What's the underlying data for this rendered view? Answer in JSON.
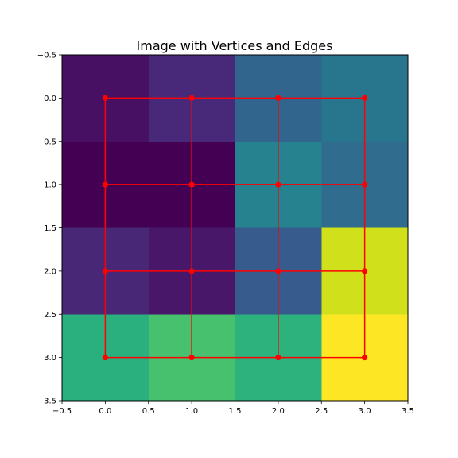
{
  "chart_data": {
    "type": "heatmap",
    "title": "Image with Vertices and Edges",
    "xlabel": "",
    "ylabel": "",
    "xlim": [
      -0.5,
      3.5
    ],
    "ylim": [
      3.5,
      -0.5
    ],
    "y_inverted": true,
    "grid": false,
    "colormap": "viridis",
    "cell_colors": [
      [
        "#471063",
        "#482979",
        "#31658e",
        "#28768e"
      ],
      [
        "#440154",
        "#440154",
        "#25828e",
        "#2f6c8e"
      ],
      [
        "#482777",
        "#481769",
        "#375b8d",
        "#d0e11c"
      ],
      [
        "#2ab07f",
        "#47c16e",
        "#2db27d",
        "#fde725"
      ]
    ],
    "x_ticks": [
      -0.5,
      0.0,
      0.5,
      1.0,
      1.5,
      2.0,
      2.5,
      3.0,
      3.5
    ],
    "x_tick_labels": [
      "−0.5",
      "0.0",
      "0.5",
      "1.0",
      "1.5",
      "2.0",
      "2.5",
      "3.0",
      "3.5"
    ],
    "y_ticks": [
      -0.5,
      0.0,
      0.5,
      1.0,
      1.5,
      2.0,
      2.5,
      3.0,
      3.5
    ],
    "y_tick_labels": [
      "−0.5",
      "0.0",
      "0.5",
      "1.0",
      "1.5",
      "2.0",
      "2.5",
      "3.0",
      "3.5"
    ],
    "vertex_color": "#ff0000",
    "edge_color": "#ff0000",
    "vertices": [
      [
        0,
        0
      ],
      [
        1,
        0
      ],
      [
        2,
        0
      ],
      [
        3,
        0
      ],
      [
        0,
        1
      ],
      [
        1,
        1
      ],
      [
        2,
        1
      ],
      [
        3,
        1
      ],
      [
        0,
        2
      ],
      [
        1,
        2
      ],
      [
        2,
        2
      ],
      [
        3,
        2
      ],
      [
        0,
        3
      ],
      [
        1,
        3
      ],
      [
        2,
        3
      ],
      [
        3,
        3
      ]
    ],
    "edges": [
      [
        [
          0,
          0
        ],
        [
          1,
          0
        ]
      ],
      [
        [
          1,
          0
        ],
        [
          2,
          0
        ]
      ],
      [
        [
          2,
          0
        ],
        [
          3,
          0
        ]
      ],
      [
        [
          0,
          1
        ],
        [
          1,
          1
        ]
      ],
      [
        [
          1,
          1
        ],
        [
          2,
          1
        ]
      ],
      [
        [
          2,
          1
        ],
        [
          3,
          1
        ]
      ],
      [
        [
          0,
          2
        ],
        [
          1,
          2
        ]
      ],
      [
        [
          1,
          2
        ],
        [
          2,
          2
        ]
      ],
      [
        [
          2,
          2
        ],
        [
          3,
          2
        ]
      ],
      [
        [
          0,
          3
        ],
        [
          1,
          3
        ]
      ],
      [
        [
          1,
          3
        ],
        [
          2,
          3
        ]
      ],
      [
        [
          2,
          3
        ],
        [
          3,
          3
        ]
      ],
      [
        [
          0,
          0
        ],
        [
          0,
          1
        ]
      ],
      [
        [
          0,
          1
        ],
        [
          0,
          2
        ]
      ],
      [
        [
          0,
          2
        ],
        [
          0,
          3
        ]
      ],
      [
        [
          1,
          0
        ],
        [
          1,
          1
        ]
      ],
      [
        [
          1,
          1
        ],
        [
          1,
          2
        ]
      ],
      [
        [
          1,
          2
        ],
        [
          1,
          3
        ]
      ],
      [
        [
          2,
          0
        ],
        [
          2,
          1
        ]
      ],
      [
        [
          2,
          1
        ],
        [
          2,
          2
        ]
      ],
      [
        [
          2,
          2
        ],
        [
          2,
          3
        ]
      ],
      [
        [
          3,
          0
        ],
        [
          3,
          1
        ]
      ],
      [
        [
          3,
          1
        ],
        [
          3,
          2
        ]
      ],
      [
        [
          3,
          2
        ],
        [
          3,
          3
        ]
      ]
    ]
  }
}
